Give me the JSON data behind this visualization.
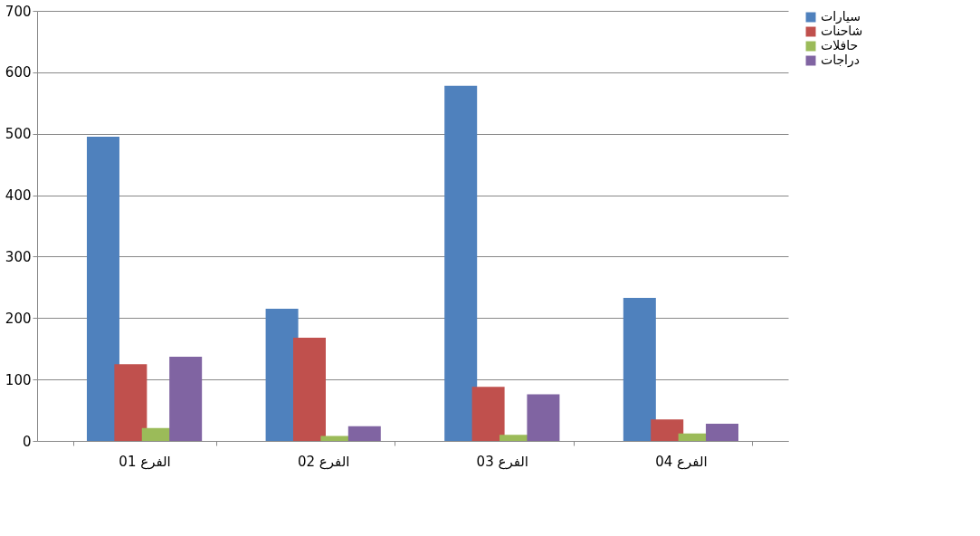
{
  "chart_data": {
    "type": "bar",
    "categories": [
      "الفرع 01",
      "الفرع 02",
      "الفرع 03",
      "الفرع 04"
    ],
    "series": [
      {
        "name": "سيارات",
        "color": "#4f81bd",
        "values": [
          495,
          215,
          578,
          233
        ]
      },
      {
        "name": "شاحنات",
        "color": "#c0504d",
        "values": [
          125,
          168,
          88,
          35
        ]
      },
      {
        "name": "حافلات",
        "color": "#9bbb59",
        "values": [
          21,
          8,
          10,
          12
        ]
      },
      {
        "name": "دراجات",
        "color": "#8064a2",
        "values": [
          137,
          24,
          76,
          28
        ]
      }
    ],
    "ylim": [
      0,
      700
    ],
    "yticks": [
      0,
      100,
      200,
      300,
      400,
      500,
      600,
      700
    ],
    "grid": "y",
    "legend": "right"
  }
}
